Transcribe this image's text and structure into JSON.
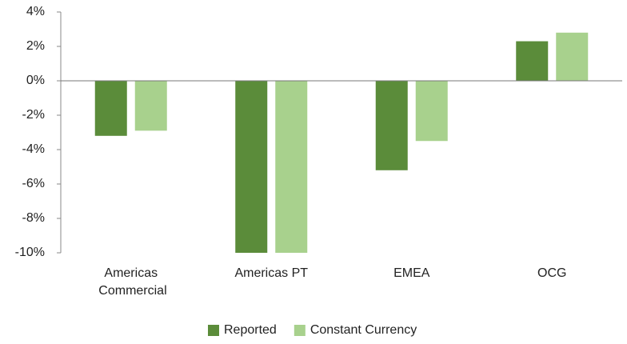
{
  "chart_data": {
    "type": "bar",
    "categories": [
      "Americas Commercial",
      "Americas PT",
      "EMEA",
      "OCG"
    ],
    "series": [
      {
        "name": "Reported",
        "color": "#5b8c3a",
        "values": [
          -3.2,
          -10,
          -5.2,
          2.3
        ]
      },
      {
        "name": "Constant Currency",
        "color": "#a8d18d",
        "values": [
          -2.9,
          -10,
          -3.5,
          2.8
        ]
      }
    ],
    "ylim": [
      -10,
      4
    ],
    "yticks": [
      {
        "value": -10,
        "label": "-10%"
      },
      {
        "value": -8,
        "label": "-8%"
      },
      {
        "value": -6,
        "label": "-6%"
      },
      {
        "value": -4,
        "label": "-4%"
      },
      {
        "value": -2,
        "label": "-2%"
      },
      {
        "value": 0,
        "label": "0%"
      },
      {
        "value": 2,
        "label": "2%"
      },
      {
        "value": 4,
        "label": "4%"
      }
    ],
    "grid": false,
    "legend": "bottom"
  }
}
